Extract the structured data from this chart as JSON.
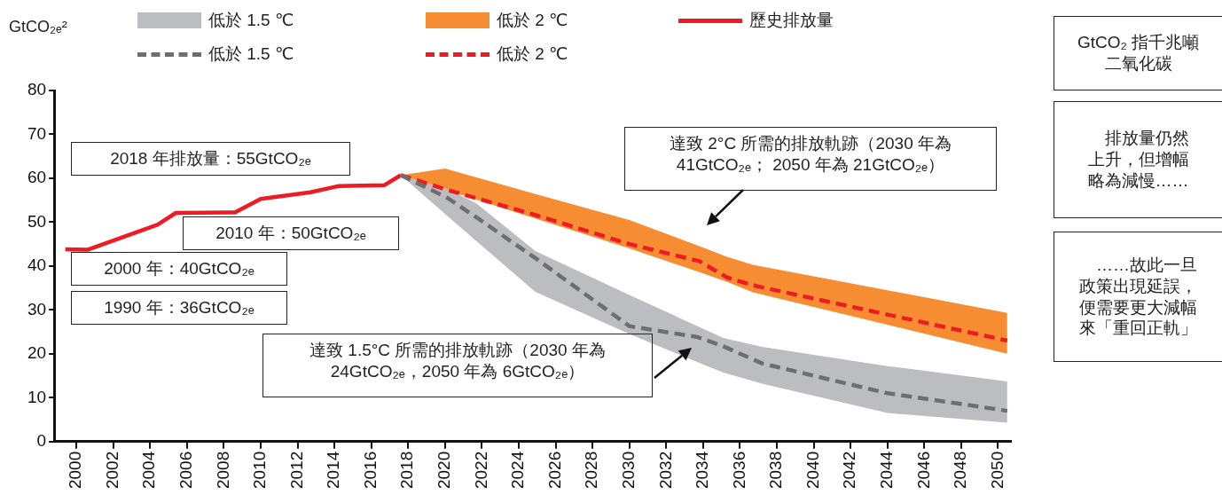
{
  "chart_data": {
    "type": "line",
    "ylabel": "GtCO₂ₑ²",
    "xlim": [
      1998.8,
      2050.7
    ],
    "ylim": [
      0,
      80
    ],
    "xticks": [
      2000,
      2002,
      2004,
      2006,
      2008,
      2010,
      2012,
      2014,
      2016,
      2018,
      2020,
      2022,
      2024,
      2026,
      2028,
      2030,
      2032,
      2034,
      2036,
      2038,
      2040,
      2042,
      2044,
      2046,
      2048,
      2050
    ],
    "yticks": [
      0,
      10,
      20,
      30,
      40,
      50,
      60,
      70,
      80
    ],
    "marker": "none",
    "legend": "top",
    "series": [
      {
        "name": "低於 1.5 ℃",
        "type": "line",
        "color": "#6d6e71",
        "line_style": "dashed",
        "x": [
          2017.6,
          2020.1,
          2021.7,
          2024.9,
          2030,
          2033.7,
          2035.1,
          2037.2,
          2044,
          2050.5
        ],
        "values": [
          60.7,
          55.6,
          51.1,
          41.8,
          26.3,
          23.8,
          21.7,
          17.8,
          11,
          7
        ],
        "upper": [
          60.7,
          57.6,
          54.3,
          43.4,
          33.4,
          26.3,
          23.6,
          21.6,
          17.2,
          13.7
        ],
        "lower": [
          60.7,
          51.5,
          45.7,
          34.1,
          24.5,
          18.1,
          15.7,
          13.2,
          6.5,
          4.3
        ]
      },
      {
        "name": "低於 2 ℃",
        "type": "line",
        "color": "#ed1c24",
        "line_style": "dashed",
        "x": [
          2017.6,
          2020,
          2025,
          2030,
          2033.8,
          2035.3,
          2036.7,
          2050.5
        ],
        "values": [
          60.7,
          57.5,
          51.5,
          45,
          41.1,
          37.4,
          35.6,
          23
        ],
        "upper": [
          60.7,
          62.2,
          56.3,
          50.5,
          44.5,
          42.1,
          40.3,
          29.3
        ],
        "lower": [
          60.7,
          57.4,
          50.7,
          44,
          38.6,
          36.4,
          34,
          20
        ]
      },
      {
        "name": "歷史排放量",
        "type": "line",
        "color": "#ed1c24",
        "line_style": "solid",
        "x": [
          1999.4,
          2000.6,
          2004.4,
          2005.4,
          2008.6,
          2010,
          2012.7,
          2014.2,
          2016.7,
          2017.6
        ],
        "values": [
          43.8,
          43.7,
          49.4,
          52.1,
          52.2,
          55.3,
          56.8,
          58.2,
          58.4,
          60.7
        ]
      }
    ],
    "annotations": [
      "2018 年排放量：55GtCO₂ₑ",
      "2010 年：50GtCO₂ₑ",
      "2000 年：40GtCO₂ₑ",
      "1990 年：36GtCO₂ₑ",
      "達致 2°C 所需的排放軌跡（2030 年為 41GtCO₂ₑ； 2050 年為 21GtCO₂ₑ）",
      "達致 1.5°C 所需的排放軌跡（2030 年為 24GtCO₂ₑ，2050 年為 6GtCO₂ₑ）",
      "GtCO₂ 指千兆噸二氧化碳",
      "排放量仍然上升，但增幅略為減慢……",
      "……故此一旦政策出現延誤，便需要更大減幅來「重回正軌」"
    ]
  }
}
